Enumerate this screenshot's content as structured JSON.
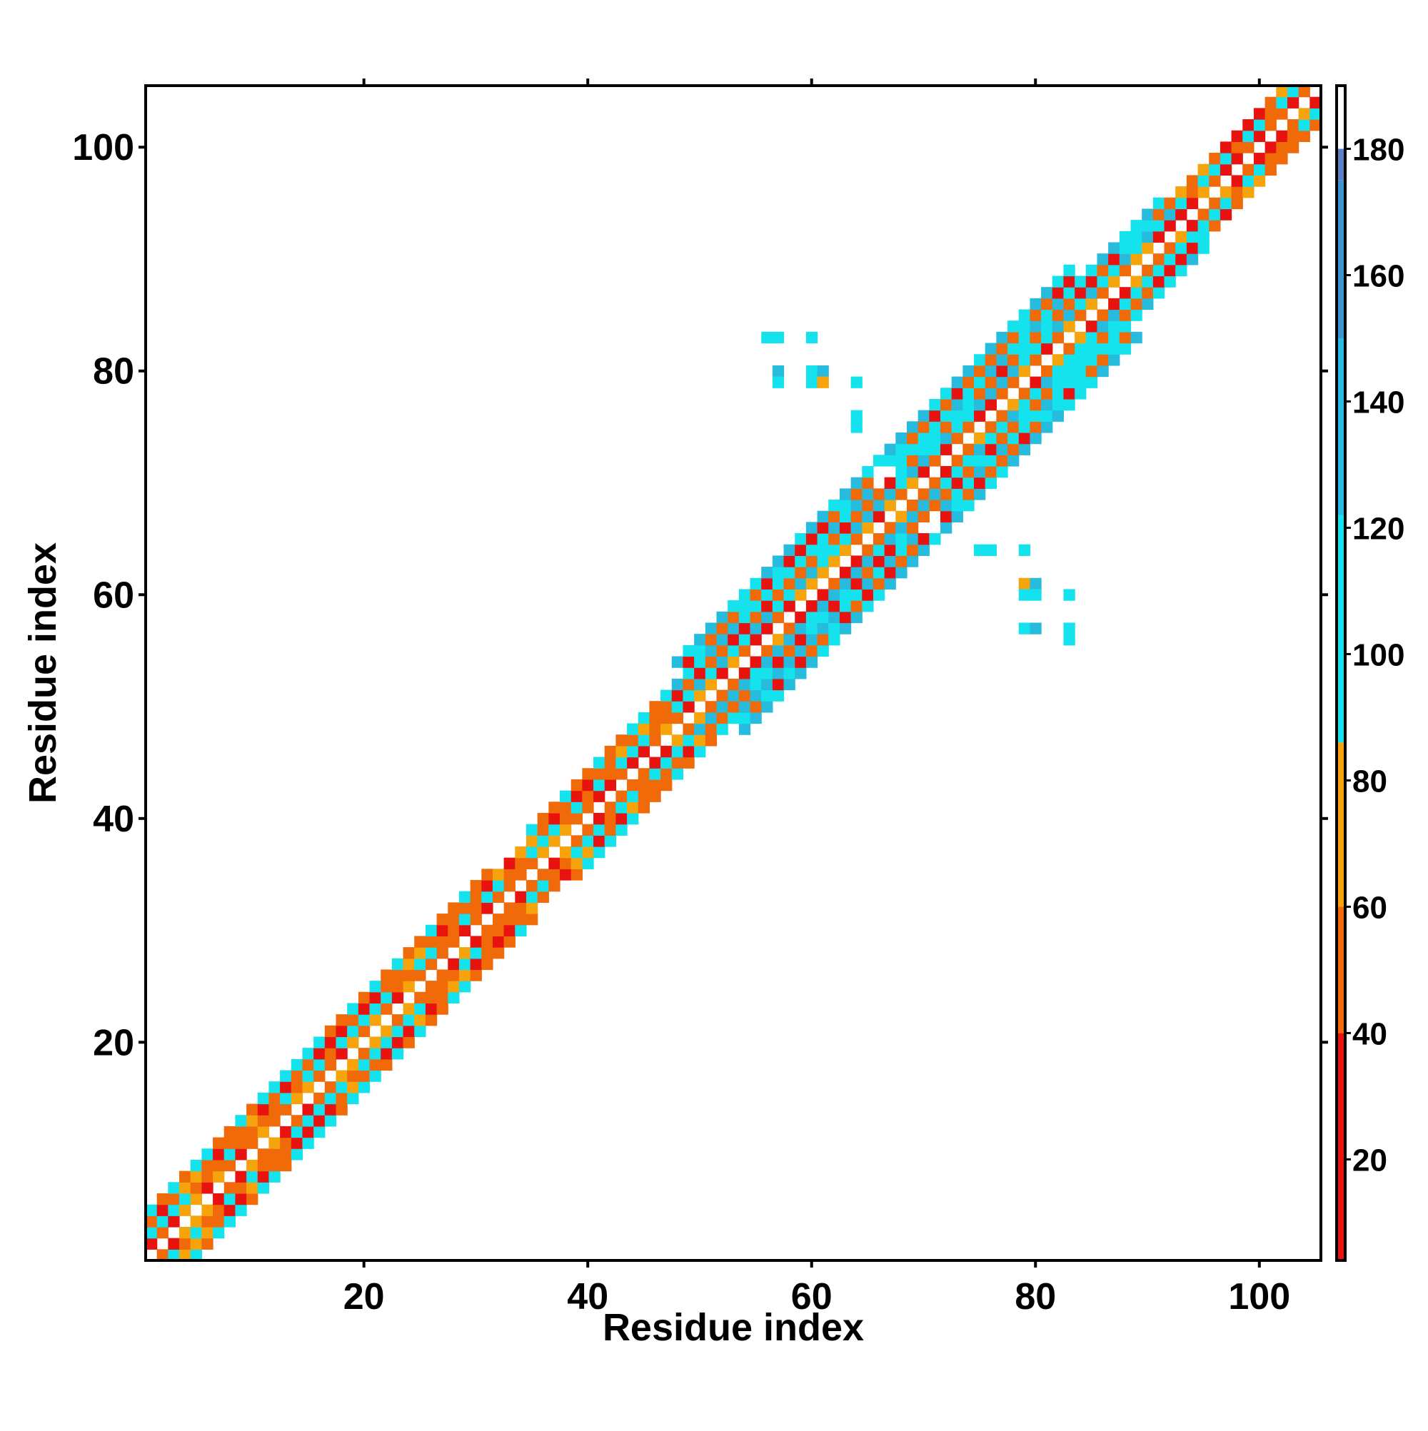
{
  "chart_data": {
    "type": "heatmap",
    "title": "",
    "xlabel": "Residue index",
    "ylabel": "Residue index",
    "xlim": [
      1,
      105
    ],
    "ylim": [
      1,
      105
    ],
    "xticks": [
      20,
      40,
      60,
      80,
      100
    ],
    "yticks": [
      20,
      40,
      60,
      80,
      100
    ],
    "x_tick_labels": [
      "20",
      "40",
      "60",
      "80",
      "100"
    ],
    "y_tick_labels": [
      "20",
      "40",
      "60",
      "80",
      "100"
    ],
    "legend": "colorbar-right",
    "grid": false,
    "colorbar": {
      "range": [
        4,
        190
      ],
      "ticks": [
        20,
        40,
        60,
        80,
        100,
        120,
        140,
        160,
        180
      ],
      "tick_labels": [
        "20",
        "40",
        "60",
        "80",
        "100",
        "120",
        "140",
        "160",
        "180"
      ],
      "stops": [
        {
          "from": 4,
          "to": 40,
          "color": "#e8130f"
        },
        {
          "from": 40,
          "to": 60,
          "color": "#f06a0a"
        },
        {
          "from": 60,
          "to": 86,
          "color": "#f7a30c"
        },
        {
          "from": 86,
          "to": 122,
          "color": "#14e3ee"
        },
        {
          "from": 122,
          "to": 150,
          "color": "#27bcdd"
        },
        {
          "from": 150,
          "to": 175,
          "color": "#3f93cf"
        },
        {
          "from": 175,
          "to": 180,
          "color": "#5f7fc5"
        },
        {
          "from": 180,
          "to": 190,
          "color": "#ffffff"
        }
      ]
    },
    "bands": [
      {
        "start": 1,
        "end": 9,
        "halfwidth": 4
      },
      {
        "start": 9,
        "end": 22,
        "halfwidth": 4
      },
      {
        "start": 22,
        "end": 32,
        "halfwidth": 4
      },
      {
        "start": 32,
        "end": 39,
        "halfwidth": 3
      },
      {
        "start": 39,
        "end": 48,
        "halfwidth": 4
      },
      {
        "start": 48,
        "end": 54,
        "halfwidth": 4
      },
      {
        "start": 54,
        "end": 66,
        "halfwidth": 6
      },
      {
        "start": 66,
        "end": 72,
        "halfwidth": 3
      },
      {
        "start": 72,
        "end": 84,
        "halfwidth": 6
      },
      {
        "start": 84,
        "end": 92,
        "halfwidth": 4
      },
      {
        "start": 92,
        "end": 106,
        "halfwidth": 3
      }
    ],
    "off_diagonal_cells": [
      {
        "x": 56,
        "y": 83,
        "value": 100
      },
      {
        "x": 57,
        "y": 83,
        "value": 100
      },
      {
        "x": 60,
        "y": 83,
        "value": 100
      },
      {
        "x": 57,
        "y": 80,
        "value": 130
      },
      {
        "x": 57,
        "y": 79,
        "value": 100
      },
      {
        "x": 60,
        "y": 80,
        "value": 100
      },
      {
        "x": 61,
        "y": 80,
        "value": 130
      },
      {
        "x": 60,
        "y": 79,
        "value": 100
      },
      {
        "x": 61,
        "y": 79,
        "value": 75
      },
      {
        "x": 64,
        "y": 79,
        "value": 100
      },
      {
        "x": 64,
        "y": 76,
        "value": 100
      },
      {
        "x": 64,
        "y": 75,
        "value": 100
      },
      {
        "x": 75,
        "y": 64,
        "value": 100
      },
      {
        "x": 76,
        "y": 64,
        "value": 100
      },
      {
        "x": 79,
        "y": 64,
        "value": 100
      },
      {
        "x": 79,
        "y": 61,
        "value": 75
      },
      {
        "x": 80,
        "y": 61,
        "value": 130
      },
      {
        "x": 79,
        "y": 60,
        "value": 100
      },
      {
        "x": 80,
        "y": 60,
        "value": 100
      },
      {
        "x": 83,
        "y": 60,
        "value": 100
      },
      {
        "x": 79,
        "y": 57,
        "value": 100
      },
      {
        "x": 80,
        "y": 57,
        "value": 130
      },
      {
        "x": 83,
        "y": 57,
        "value": 100
      },
      {
        "x": 83,
        "y": 56,
        "value": 100
      }
    ]
  }
}
